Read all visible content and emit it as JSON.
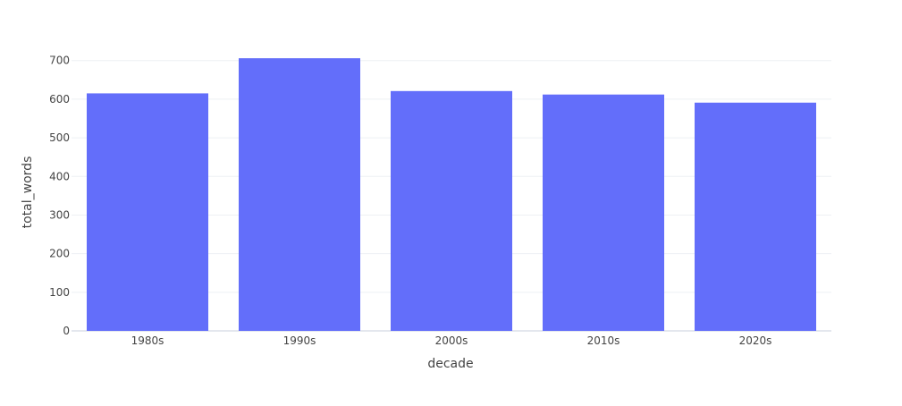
{
  "chart_data": {
    "type": "bar",
    "title": "",
    "xlabel": "decade",
    "ylabel": "total_words",
    "categories": [
      "1980s",
      "1990s",
      "2000s",
      "2010s",
      "2020s"
    ],
    "values": [
      615,
      706,
      621,
      612,
      591
    ],
    "ylim": [
      0,
      741
    ],
    "yticks": [
      0,
      100,
      200,
      300,
      400,
      500,
      600,
      700
    ],
    "grid": true,
    "legend": "none",
    "colors": {
      "bar": "#636efa",
      "grid": "#eef0f4",
      "text": "#444444",
      "background": "#ffffff"
    }
  }
}
